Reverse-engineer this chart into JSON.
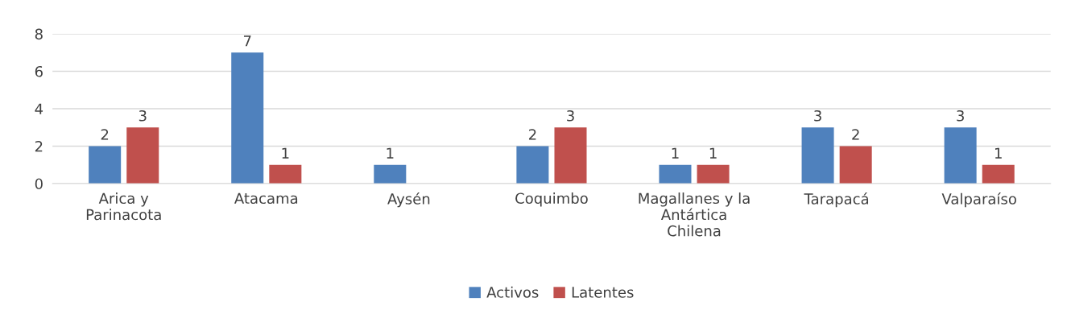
{
  "chart_data": {
    "type": "bar",
    "categories": [
      "Arica y\nParinacota",
      "Atacama",
      "Aysén",
      "Coquimbo",
      "Magallanes y la\nAntártica\nChilena",
      "Tarapacá",
      "Valparaíso"
    ],
    "series": [
      {
        "name": "Activos",
        "color": "#4f81bd",
        "values": [
          2,
          7,
          1,
          2,
          1,
          3,
          3
        ]
      },
      {
        "name": "Latentes",
        "color": "#c0504d",
        "values": [
          3,
          1,
          null,
          3,
          1,
          2,
          1
        ]
      }
    ],
    "ylim": [
      0,
      8
    ],
    "yticks": [
      0,
      2,
      4,
      6,
      8
    ],
    "grid": "y",
    "legend": "bottom",
    "data_labels": true
  }
}
